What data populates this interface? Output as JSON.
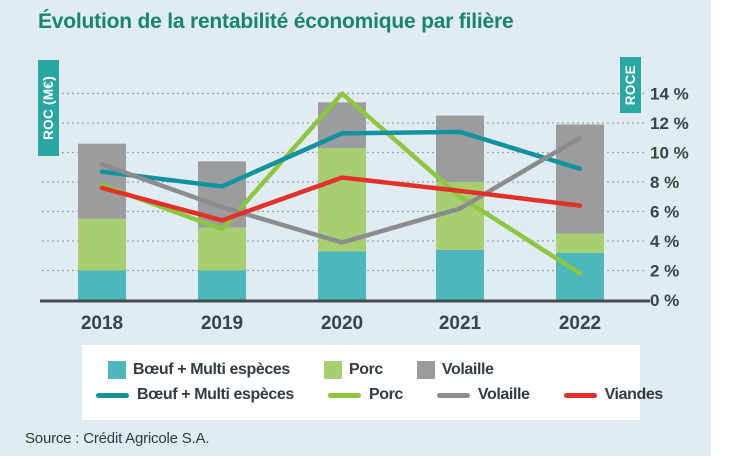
{
  "title": "Évolution de la rentabilité économique par filière",
  "source": "Source : Crédit Agricole S.A.",
  "axes": {
    "left_label": "ROC (M€)",
    "right_label": "ROCE"
  },
  "x_labels": [
    "2018",
    "2019",
    "2020",
    "2021",
    "2022"
  ],
  "legend": {
    "squares": [
      {
        "label": "Bœuf + Multi espèces",
        "color": "#4cb7bd"
      },
      {
        "label": "Porc",
        "color": "#a7cf72"
      },
      {
        "label": "Volaille",
        "color": "#9b9c9e"
      }
    ],
    "lines": [
      {
        "label": "Bœuf + Multi espèces",
        "color": "#12929e"
      },
      {
        "label": "Porc",
        "color": "#8ec63f"
      },
      {
        "label": "Volaille",
        "color": "#8a8c8e"
      },
      {
        "label": "Viandes",
        "color": "#e23128"
      }
    ]
  },
  "colors": {
    "panel_background": "#e0ecf1",
    "title_text": "#17866b",
    "axis_badge": "#28a7a3",
    "grid": "#99a3aa",
    "baseline": "#454b4f",
    "tick_text": "#39444c"
  },
  "chart_data": [
    {
      "type": "bar",
      "stacked": true,
      "title": "Évolution de la rentabilité économique par filière",
      "categories": [
        "2018",
        "2019",
        "2020",
        "2021",
        "2022"
      ],
      "series": [
        {
          "name": "Bœuf + Multi espèces",
          "color": "#4cb7bd",
          "values": [
            2.0,
            2.0,
            3.3,
            3.4,
            3.2
          ]
        },
        {
          "name": "Porc",
          "color": "#a7cf72",
          "values": [
            3.5,
            2.9,
            7.0,
            4.6,
            1.3
          ]
        },
        {
          "name": "Volaille",
          "color": "#9b9c9e",
          "values": [
            5.1,
            4.5,
            3.1,
            4.5,
            7.4
          ]
        }
      ],
      "ylabel": "ROC (M€)",
      "y_tick_labels_visible": false
    },
    {
      "type": "line",
      "categories": [
        "2018",
        "2019",
        "2020",
        "2021",
        "2022"
      ],
      "series": [
        {
          "name": "Bœuf + Multi espèces",
          "color": "#12929e",
          "values": [
            8.7,
            7.7,
            11.3,
            11.4,
            8.9
          ]
        },
        {
          "name": "Porc",
          "color": "#8ec63f",
          "values": [
            7.8,
            4.8,
            14.0,
            7.0,
            1.8
          ]
        },
        {
          "name": "Volaille",
          "color": "#8a8c8e",
          "values": [
            9.2,
            6.3,
            3.9,
            6.2,
            11.0
          ]
        },
        {
          "name": "Viandes",
          "color": "#e23128",
          "values": [
            7.6,
            5.4,
            8.3,
            7.4,
            6.4
          ]
        }
      ],
      "ylabel": "ROCE",
      "ylim": [
        0,
        14
      ],
      "yticks": [
        0,
        2,
        4,
        6,
        8,
        10,
        12,
        14
      ],
      "ytick_labels": [
        "0 %",
        "2 %",
        "4 %",
        "6 %",
        "8 %",
        "10 %",
        "12 %",
        "14 %"
      ],
      "grid": "dashed horizontal",
      "legend_position": "bottom"
    }
  ]
}
